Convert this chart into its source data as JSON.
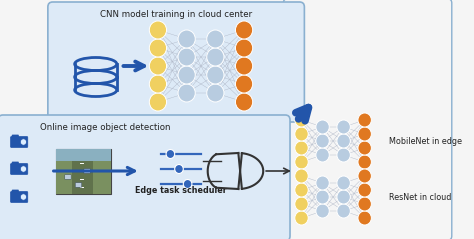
{
  "title_top": "CNN model training in cloud center",
  "title_bottom": "Online image object detection",
  "label_edge_scheduler": "Edge task scheduler",
  "label_mobilenet": "MobileNet in edge",
  "label_resnet": "ResNet in cloud",
  "bg_color": "#f5f5f5",
  "box_top_color": "#ddeaf7",
  "box_bottom_color": "#ddeaf7",
  "node_yellow": "#f0d060",
  "node_blue_light": "#b8cce0",
  "node_orange": "#e07820",
  "arrow_blue": "#2255aa",
  "line_color": "#b0b8c8",
  "text_color": "#222222",
  "db_color": "#2255aa",
  "slider_color": "#3366bb",
  "gate_color": "#333333",
  "box_edge_color": "#8ab0d0"
}
